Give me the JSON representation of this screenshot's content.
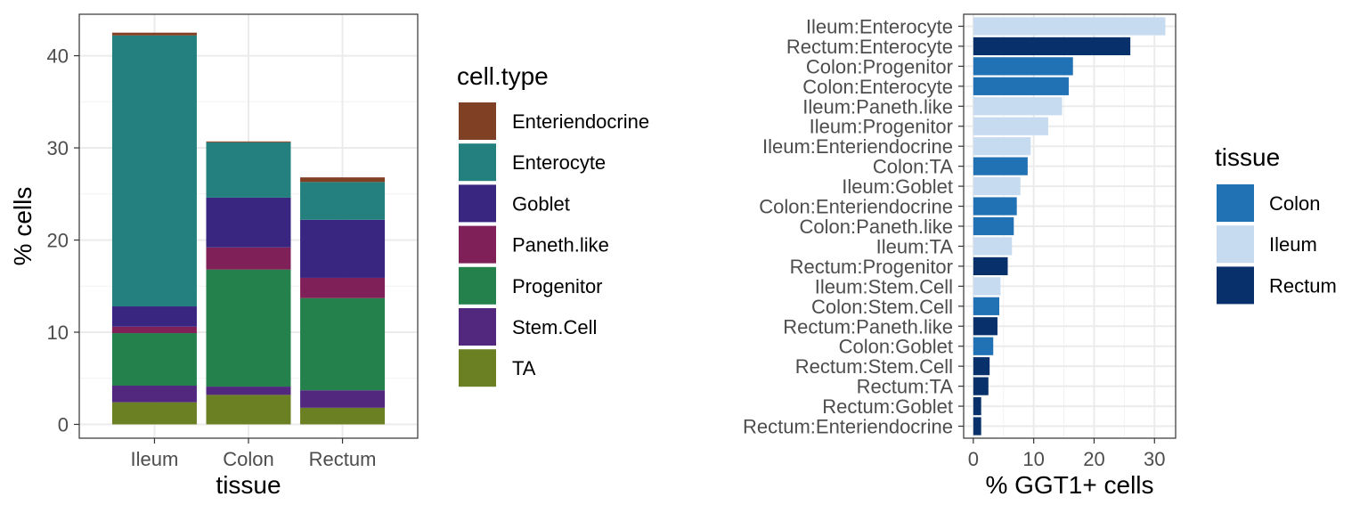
{
  "chart_data": [
    {
      "type": "bar",
      "stacked": true,
      "xlabel": "tissue",
      "ylabel": "% cells",
      "categories": [
        "Ileum",
        "Colon",
        "Rectum"
      ],
      "ylim": [
        -1.5,
        44.5
      ],
      "yticks": [
        0,
        10,
        20,
        30,
        40
      ],
      "legend_title": "cell.type",
      "legend_position": "right",
      "grid": true,
      "series": [
        {
          "name": "TA",
          "color": "#6B7F23",
          "values": [
            2.4,
            3.2,
            1.8
          ]
        },
        {
          "name": "Stem.Cell",
          "color": "#52287F",
          "values": [
            1.8,
            0.9,
            1.9
          ]
        },
        {
          "name": "Progenitor",
          "color": "#25814B",
          "values": [
            5.7,
            12.7,
            10.0
          ]
        },
        {
          "name": "Paneth.like",
          "color": "#7F2158",
          "values": [
            0.7,
            2.4,
            2.2
          ]
        },
        {
          "name": "Goblet",
          "color": "#392680",
          "values": [
            2.2,
            5.4,
            6.3
          ]
        },
        {
          "name": "Enterocyte",
          "color": "#23807E",
          "values": [
            29.4,
            6.0,
            4.1
          ]
        },
        {
          "name": "Enteriendocrine",
          "color": "#7F4024",
          "values": [
            0.3,
            0.1,
            0.5
          ]
        }
      ]
    },
    {
      "type": "bar",
      "orientation": "horizontal",
      "xlabel": "% GGT1+ cells",
      "ylabel": "",
      "xlim": [
        -1.6,
        33.5
      ],
      "xticks": [
        0,
        10,
        20,
        30
      ],
      "legend_title": "tissue",
      "legend_position": "right",
      "grid": true,
      "colors": {
        "Colon": "#2171B5",
        "Ileum": "#C6DBEF",
        "Rectum": "#08306B"
      },
      "bars": [
        {
          "label": "Ileum:Enterocyte",
          "tissue": "Ileum",
          "value": 31.8
        },
        {
          "label": "Rectum:Enterocyte",
          "tissue": "Rectum",
          "value": 26.0
        },
        {
          "label": "Colon:Progenitor",
          "tissue": "Colon",
          "value": 16.5
        },
        {
          "label": "Colon:Enterocyte",
          "tissue": "Colon",
          "value": 15.8
        },
        {
          "label": "Ileum:Paneth.like",
          "tissue": "Ileum",
          "value": 14.7
        },
        {
          "label": "Ileum:Progenitor",
          "tissue": "Ileum",
          "value": 12.4
        },
        {
          "label": "Ileum:Enteriendocrine",
          "tissue": "Ileum",
          "value": 9.5
        },
        {
          "label": "Colon:TA",
          "tissue": "Colon",
          "value": 9.0
        },
        {
          "label": "Ileum:Goblet",
          "tissue": "Ileum",
          "value": 7.8
        },
        {
          "label": "Colon:Enteriendocrine",
          "tissue": "Colon",
          "value": 7.2
        },
        {
          "label": "Colon:Paneth.like",
          "tissue": "Colon",
          "value": 6.7
        },
        {
          "label": "Ileum:TA",
          "tissue": "Ileum",
          "value": 6.4
        },
        {
          "label": "Rectum:Progenitor",
          "tissue": "Rectum",
          "value": 5.7
        },
        {
          "label": "Ileum:Stem.Cell",
          "tissue": "Ileum",
          "value": 4.5
        },
        {
          "label": "Colon:Stem.Cell",
          "tissue": "Colon",
          "value": 4.3
        },
        {
          "label": "Rectum:Paneth.like",
          "tissue": "Rectum",
          "value": 4.0
        },
        {
          "label": "Colon:Goblet",
          "tissue": "Colon",
          "value": 3.3
        },
        {
          "label": "Rectum:Stem.Cell",
          "tissue": "Rectum",
          "value": 2.7
        },
        {
          "label": "Rectum:TA",
          "tissue": "Rectum",
          "value": 2.5
        },
        {
          "label": "Rectum:Goblet",
          "tissue": "Rectum",
          "value": 1.3
        },
        {
          "label": "Rectum:Enteriendocrine",
          "tissue": "Rectum",
          "value": 1.3
        }
      ],
      "legend_order": [
        "Colon",
        "Ileum",
        "Rectum"
      ]
    }
  ]
}
